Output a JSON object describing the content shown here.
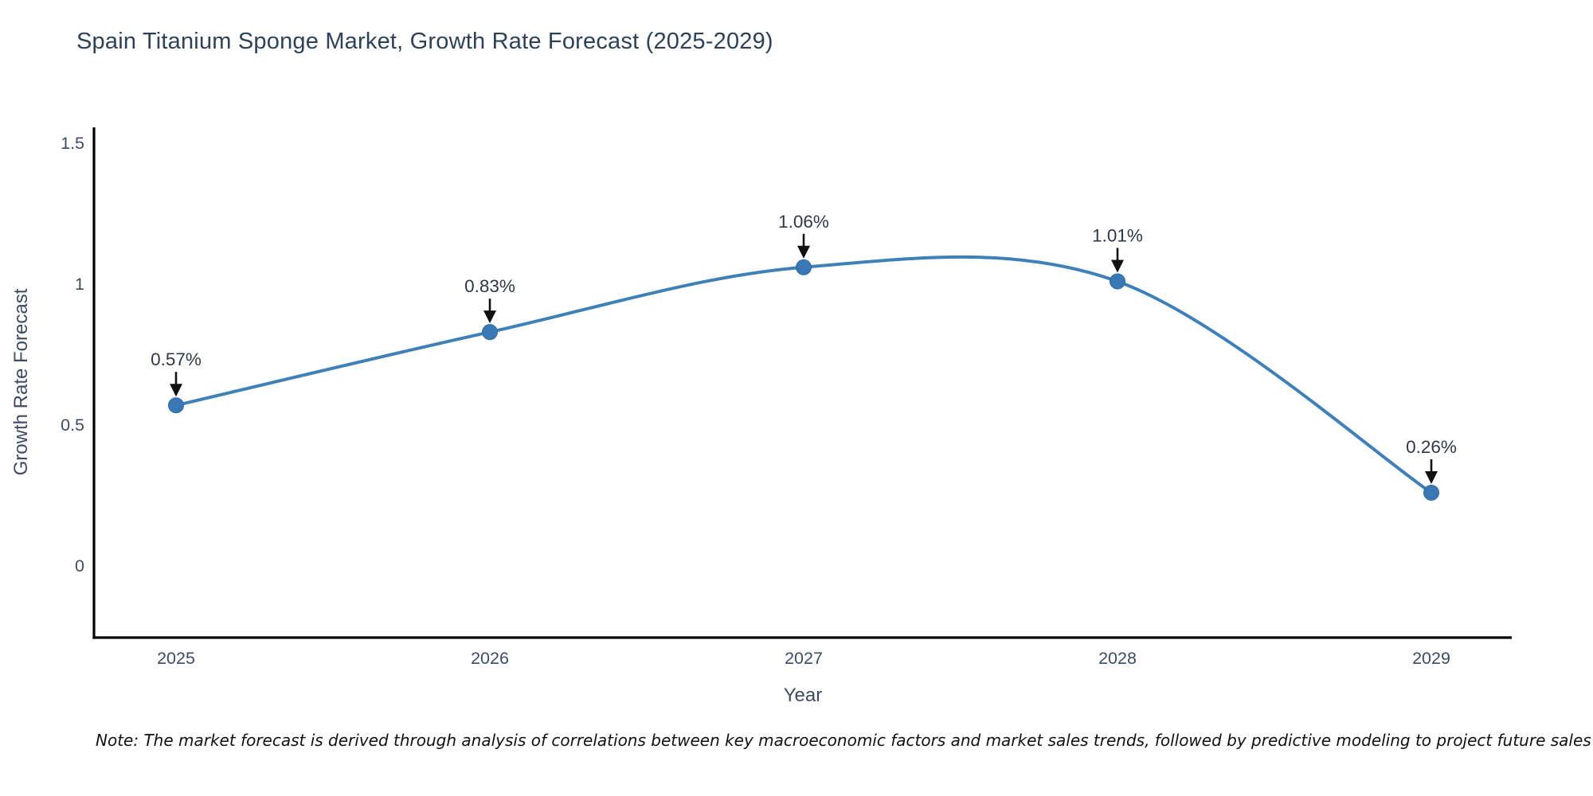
{
  "chart_data": {
    "type": "line",
    "title": "Spain Titanium Sponge Market, Growth Rate Forecast (2025-2029)",
    "xlabel": "Year",
    "ylabel": "Growth Rate Forecast",
    "x": [
      2025,
      2026,
      2027,
      2028,
      2029
    ],
    "values": [
      0.57,
      0.83,
      1.06,
      1.01,
      0.26
    ],
    "point_labels": [
      "0.57%",
      "0.83%",
      "1.06%",
      "1.01%",
      "0.26%"
    ],
    "x_tick_labels": [
      "2025",
      "2026",
      "2027",
      "2028",
      "2029"
    ],
    "y_ticks": {
      "values": [
        0,
        0.5,
        1,
        1.5
      ],
      "labels": [
        "0",
        "0.5",
        "1",
        "1.5"
      ]
    },
    "ylim": [
      -0.254,
      1.556
    ],
    "grid": false,
    "legend": "none",
    "smooth": true,
    "colors": {
      "line": "#4080b9",
      "marker": "#3a78b5",
      "marker_edge": "#2f6ba3",
      "axis": "#000000",
      "annotation_arrow": "#111111",
      "annotation_text": "#2f3747",
      "tick_text": "#3d4c63",
      "title_text": "#2e4257"
    }
  },
  "note": "Note: The market forecast is derived through analysis of correlations between key macroeconomic factors and market sales trends, followed by predictive modeling to project future sales"
}
